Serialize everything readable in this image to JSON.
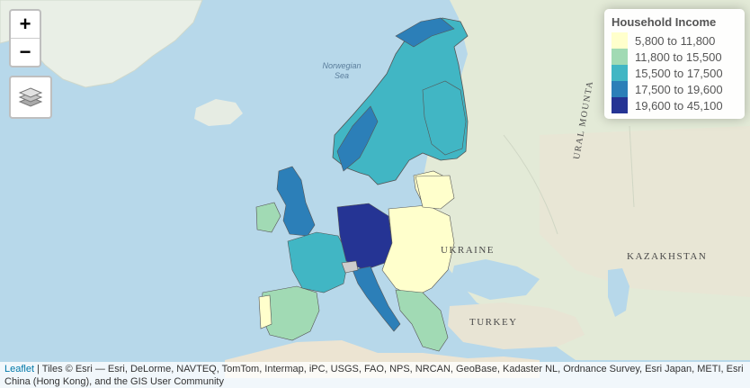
{
  "map": {
    "zoom_in_label": "+",
    "zoom_out_label": "−",
    "labels": {
      "sea_line1": "Norwegian",
      "sea_line2": "Sea",
      "ukraine": "UKRAINE",
      "turkey": "TURKEY",
      "kazakhstan": "KAZAKHSTAN",
      "ural": "URAL MOUNTA"
    }
  },
  "legend": {
    "title": "Household Income",
    "items": [
      {
        "label": "5,800 to 11,800",
        "color": "#ffffcc"
      },
      {
        "label": "11,800 to 15,500",
        "color": "#a1dab4"
      },
      {
        "label": "15,500 to 17,500",
        "color": "#41b6c4"
      },
      {
        "label": "17,500 to 19,600",
        "color": "#2c7fb8"
      },
      {
        "label": "19,600 to 45,100",
        "color": "#253494"
      }
    ]
  },
  "attribution": {
    "link_text": "Leaflet",
    "text": " | Tiles © Esri — Esri, DeLorme, NAVTEQ, TomTom, Intermap, iPC, USGS, FAO, NPS, NRCAN, GeoBase, Kadaster NL, Ordnance Survey, Esri Japan, METI, Esri China (Hong Kong), and the GIS User Community"
  }
}
